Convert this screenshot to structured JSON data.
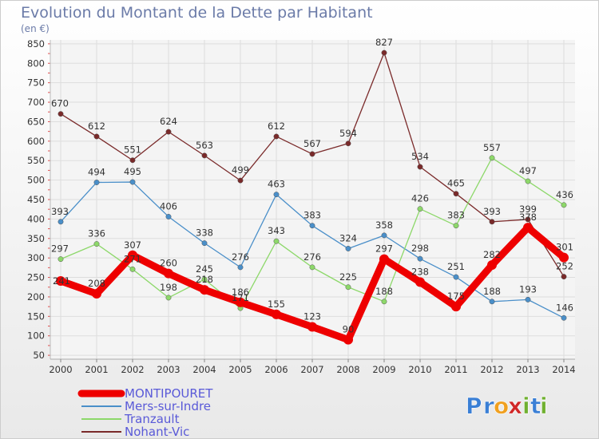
{
  "chart_data": {
    "type": "line",
    "title": "Evolution du Montant de la Dette par Habitant",
    "subtitle": "(en €)",
    "categories": [
      "2000",
      "2001",
      "2002",
      "2003",
      "2004",
      "2005",
      "2006",
      "2007",
      "2008",
      "2009",
      "2010",
      "2011",
      "2012",
      "2013",
      "2014"
    ],
    "yticks": [
      50,
      100,
      150,
      200,
      250,
      300,
      350,
      400,
      450,
      500,
      550,
      600,
      650,
      700,
      750,
      800,
      850
    ],
    "ylim": [
      40,
      860
    ],
    "grid": true,
    "legend_position": "bottom-left",
    "series": [
      {
        "name": "MONTIPOURET",
        "color": "#ee0000",
        "values": [
          241,
          208,
          307,
          260,
          218,
          186,
          155,
          123,
          90,
          297,
          238,
          175,
          282,
          378,
          301
        ]
      },
      {
        "name": "Mers-sur-Indre",
        "color": "#4a8fc9",
        "values": [
          393,
          494,
          495,
          406,
          338,
          276,
          463,
          383,
          324,
          358,
          298,
          251,
          188,
          193,
          146
        ]
      },
      {
        "name": "Tranzault",
        "color": "#8dd86a",
        "values": [
          297,
          336,
          271,
          198,
          245,
          171,
          343,
          276,
          225,
          188,
          426,
          383,
          557,
          497,
          436
        ]
      },
      {
        "name": "Nohant-Vic",
        "color": "#7a2a2a",
        "values": [
          670,
          612,
          551,
          624,
          563,
          499,
          612,
          567,
          594,
          827,
          534,
          465,
          393,
          399,
          252
        ]
      }
    ],
    "labels": [
      [
        "241",
        "208",
        "307",
        "260",
        "218",
        "186",
        "155",
        "123",
        "90",
        "297",
        "238",
        "175",
        "282",
        "378",
        "301"
      ],
      [
        "393",
        "494",
        "495",
        "406",
        "338",
        "276",
        "463",
        "383",
        "324",
        "358",
        "298",
        "251",
        "188",
        "193",
        "146"
      ],
      [
        "297",
        "336",
        "271",
        "198",
        "245",
        "171",
        "343",
        "276",
        "225",
        "188",
        "426",
        "383",
        "557",
        "497",
        "436"
      ],
      [
        "670",
        "612",
        "551",
        "624",
        "563",
        "499",
        "612",
        "567",
        "594",
        "827",
        "534",
        "465",
        "393",
        "399",
        "252"
      ]
    ]
  },
  "brand": {
    "logo_letters": [
      "P",
      "r",
      "o",
      "x",
      "i",
      "t",
      "i"
    ],
    "logo_colors": [
      "#3a7fd5",
      "#3a7fd5",
      "#f0a020",
      "#d02828",
      "#70b030",
      "#3a7fd5",
      "#70b030"
    ]
  }
}
